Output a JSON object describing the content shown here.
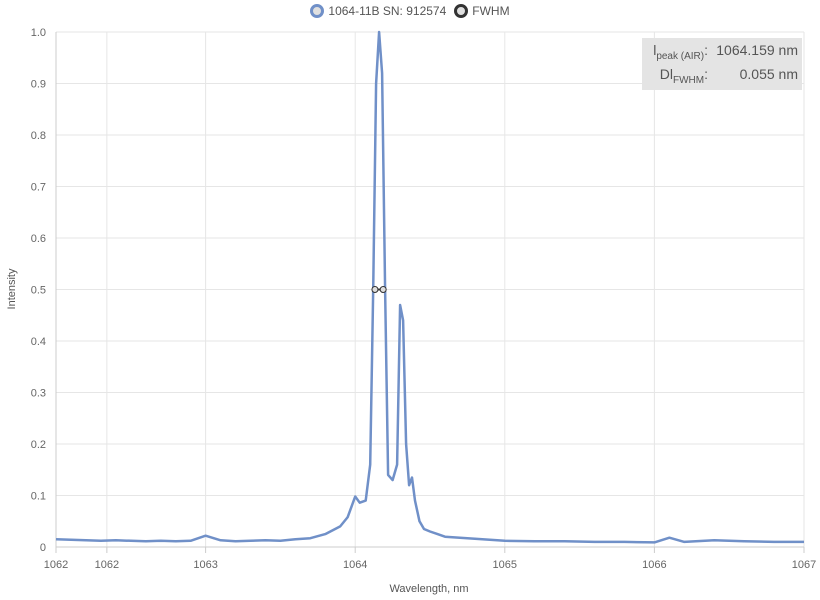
{
  "legend": {
    "series_label": "1064-11B SN: 912574",
    "fwhm_label": "FWHM"
  },
  "info": {
    "peak_label_main": "l",
    "peak_label_sub": "peak (AIR)",
    "peak_value": "1064.159 nm",
    "fwhm_label_main": "Dl",
    "fwhm_label_sub": "FWHM",
    "fwhm_value": "0.055 nm"
  },
  "colors": {
    "series": "#7090c8",
    "fwhm": "#333333",
    "grid": "#e6e6e6",
    "infobox": "#e4e4e4"
  },
  "chart_data": {
    "type": "line",
    "title": "",
    "xlabel": "Wavelength, nm",
    "ylabel": "Intensity",
    "xlim": [
      1062,
      1067
    ],
    "ylim": [
      0,
      1.0
    ],
    "x_tick_labels": [
      "1062",
      "1062",
      "1063",
      "1064",
      "1065",
      "1066",
      "1067"
    ],
    "x_tick_values": [
      1062,
      1062.34,
      1063,
      1064,
      1065,
      1066,
      1067
    ],
    "y_tick_labels": [
      "0",
      "0.1",
      "0.2",
      "0.3",
      "0.4",
      "0.5",
      "0.6",
      "0.7",
      "0.8",
      "0.9",
      "1.0"
    ],
    "y_tick_values": [
      0,
      0.1,
      0.2,
      0.3,
      0.4,
      0.5,
      0.6,
      0.7,
      0.8,
      0.9,
      1.0
    ],
    "grid": true,
    "legend_position": "top-center",
    "series": [
      {
        "name": "1064-11B SN: 912574",
        "x": [
          1062.0,
          1062.1,
          1062.2,
          1062.3,
          1062.4,
          1062.5,
          1062.6,
          1062.7,
          1062.8,
          1062.9,
          1063.0,
          1063.1,
          1063.2,
          1063.3,
          1063.4,
          1063.5,
          1063.6,
          1063.7,
          1063.8,
          1063.9,
          1063.95,
          1064.0,
          1064.03,
          1064.07,
          1064.1,
          1064.12,
          1064.14,
          1064.16,
          1064.18,
          1064.2,
          1064.22,
          1064.25,
          1064.28,
          1064.3,
          1064.32,
          1064.34,
          1064.36,
          1064.38,
          1064.4,
          1064.43,
          1064.46,
          1064.5,
          1064.55,
          1064.6,
          1064.7,
          1064.8,
          1064.9,
          1065.0,
          1065.2,
          1065.4,
          1065.6,
          1065.8,
          1066.0,
          1066.1,
          1066.2,
          1066.4,
          1066.6,
          1066.8,
          1067.0
        ],
        "y": [
          0.015,
          0.014,
          0.013,
          0.012,
          0.013,
          0.012,
          0.011,
          0.012,
          0.011,
          0.012,
          0.022,
          0.013,
          0.011,
          0.012,
          0.013,
          0.012,
          0.015,
          0.017,
          0.025,
          0.04,
          0.058,
          0.098,
          0.086,
          0.09,
          0.16,
          0.5,
          0.9,
          1.0,
          0.92,
          0.5,
          0.14,
          0.13,
          0.16,
          0.47,
          0.44,
          0.2,
          0.12,
          0.135,
          0.09,
          0.05,
          0.035,
          0.03,
          0.025,
          0.02,
          0.018,
          0.016,
          0.014,
          0.012,
          0.011,
          0.011,
          0.01,
          0.01,
          0.009,
          0.018,
          0.01,
          0.013,
          0.011,
          0.01,
          0.01
        ]
      },
      {
        "name": "FWHM",
        "x": [
          1064.132,
          1064.187
        ],
        "y": [
          0.5,
          0.5
        ]
      }
    ]
  }
}
